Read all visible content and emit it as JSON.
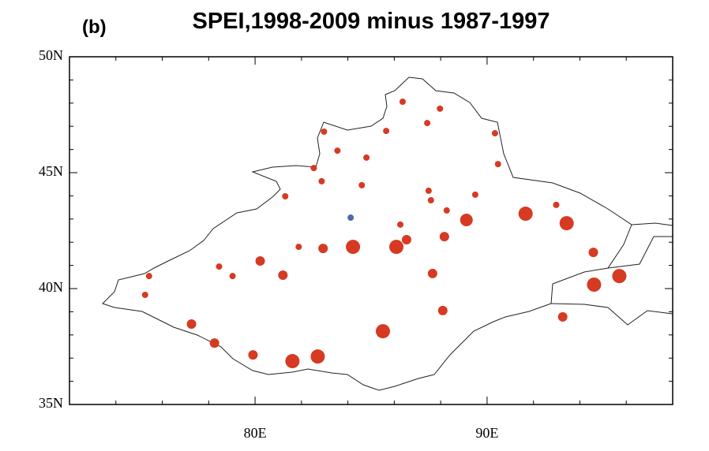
{
  "chart_data": {
    "type": "scatter",
    "panel_label": "(b)",
    "title": "SPEI,1998-2009 minus 1987-1997",
    "xlim": [
      72,
      98
    ],
    "ylim": [
      35,
      50
    ],
    "xticks": [
      {
        "value": 80,
        "label": "80E"
      },
      {
        "value": 90,
        "label": "90E"
      }
    ],
    "yticks": [
      {
        "value": 35,
        "label": "35N"
      },
      {
        "value": 40,
        "label": "40N"
      },
      {
        "value": 45,
        "label": "45N"
      },
      {
        "value": 50,
        "label": "50N"
      }
    ],
    "xminorticks": [
      74,
      76,
      78,
      82,
      84,
      86,
      88,
      92,
      94,
      96
    ],
    "yminorticks": [
      36,
      37,
      38,
      39,
      41,
      42,
      43,
      44,
      46,
      47,
      48,
      49
    ],
    "series": [
      {
        "color": "#d63a22",
        "x": [
          86.36,
          87.97,
          87.42,
          85.65,
          82.97,
          83.55,
          84.8,
          90.34,
          90.47,
          82.53,
          82.87,
          81.3,
          84.6,
          87.48,
          87.58,
          88.26,
          89.49,
          86.26,
          89.11,
          91.66,
          92.98,
          93.43,
          86.53,
          88.16,
          86.09,
          84.22,
          82.93,
          81.88,
          80.22,
          81.2,
          78.45,
          79.03,
          75.43,
          75.26,
          87.65,
          94.58,
          94.61,
          95.7,
          88.09,
          93.26,
          77.26,
          78.25,
          85.51,
          79.91,
          81.61,
          82.7
        ],
        "values": [
          48.06,
          47.76,
          47.14,
          46.8,
          46.77,
          45.95,
          45.65,
          46.7,
          45.37,
          45.2,
          44.63,
          43.98,
          44.46,
          44.22,
          43.81,
          43.37,
          44.05,
          42.76,
          42.96,
          43.23,
          43.61,
          42.82,
          42.11,
          42.24,
          41.8,
          41.8,
          41.73,
          41.8,
          41.19,
          40.58,
          40.95,
          40.54,
          40.54,
          39.73,
          40.65,
          41.56,
          40.17,
          40.54,
          39.05,
          38.78,
          38.47,
          37.65,
          38.16,
          37.14,
          36.87,
          37.07
        ],
        "sizes": [
          4,
          4,
          4,
          4,
          4,
          4,
          4,
          4,
          4,
          4,
          4,
          4,
          4,
          4,
          4,
          4,
          4,
          4,
          8,
          9,
          4,
          9,
          6,
          6,
          9,
          9,
          6,
          4,
          6,
          6,
          4,
          4,
          4,
          4,
          6,
          6,
          9,
          9,
          6,
          6,
          6,
          6,
          9,
          6,
          9,
          9
        ]
      },
      {
        "color": "#4a6aa8",
        "x": [
          84.12
        ],
        "values": [
          43.06
        ],
        "sizes": [
          4
        ]
      }
    ]
  }
}
